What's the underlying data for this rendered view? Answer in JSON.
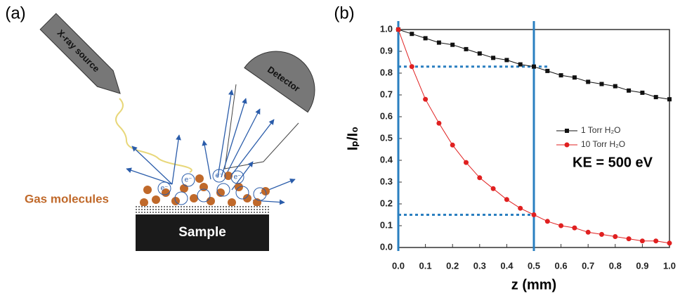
{
  "figure": {
    "label_a": "(a)",
    "label_b": "(b)"
  },
  "diagram": {
    "source": "X-ray source",
    "detector": "Detector",
    "gas": "Gas molecules",
    "sample": "Sample",
    "electron": "e⁻"
  },
  "chart_data": {
    "type": "line",
    "xlabel": "z (mm)",
    "ylabel": "Iₚ/I₀",
    "annotation": "KE = 500 eV",
    "x": [
      0,
      0.05,
      0.1,
      0.15,
      0.2,
      0.25,
      0.3,
      0.35,
      0.4,
      0.45,
      0.5,
      0.55,
      0.6,
      0.65,
      0.7,
      0.75,
      0.8,
      0.85,
      0.9,
      0.95,
      1.0
    ],
    "series": [
      {
        "name": "1 Torr H₂O",
        "color": "#111111",
        "marker": "square",
        "values": [
          1.0,
          0.98,
          0.96,
          0.94,
          0.93,
          0.91,
          0.89,
          0.87,
          0.86,
          0.84,
          0.83,
          0.81,
          0.79,
          0.78,
          0.76,
          0.75,
          0.74,
          0.72,
          0.71,
          0.69,
          0.68
        ]
      },
      {
        "name": "10 Torr H₂O",
        "color": "#e02020",
        "marker": "circle",
        "values": [
          1.0,
          0.83,
          0.68,
          0.57,
          0.47,
          0.39,
          0.32,
          0.27,
          0.22,
          0.18,
          0.15,
          0.12,
          0.1,
          0.09,
          0.07,
          0.06,
          0.05,
          0.04,
          0.03,
          0.03,
          0.02
        ]
      }
    ],
    "xlim": [
      0,
      1.0
    ],
    "ylim": [
      0,
      1.0
    ],
    "xticks": [
      {
        "value": 0,
        "label": "0.0"
      },
      0.1,
      0.2,
      0.3,
      0.4,
      0.5,
      0.6,
      0.7,
      0.8,
      0.9,
      {
        "value": 1.0,
        "label": "1.0"
      }
    ],
    "yticks": [
      {
        "value": 0,
        "label": "0.0"
      },
      0.1,
      0.2,
      0.3,
      0.4,
      0.5,
      0.6,
      0.7,
      0.8,
      0.9,
      {
        "value": 1.0,
        "label": "1.0"
      }
    ],
    "vlines": [
      0,
      0.5
    ],
    "vline_color": "#2a7fc0",
    "hlines": [
      {
        "y": 0.83,
        "x": [
          0,
          0.55
        ]
      },
      {
        "y": 0.15,
        "x": [
          0,
          0.5
        ]
      }
    ],
    "hline_color": "#2a7fc0"
  }
}
